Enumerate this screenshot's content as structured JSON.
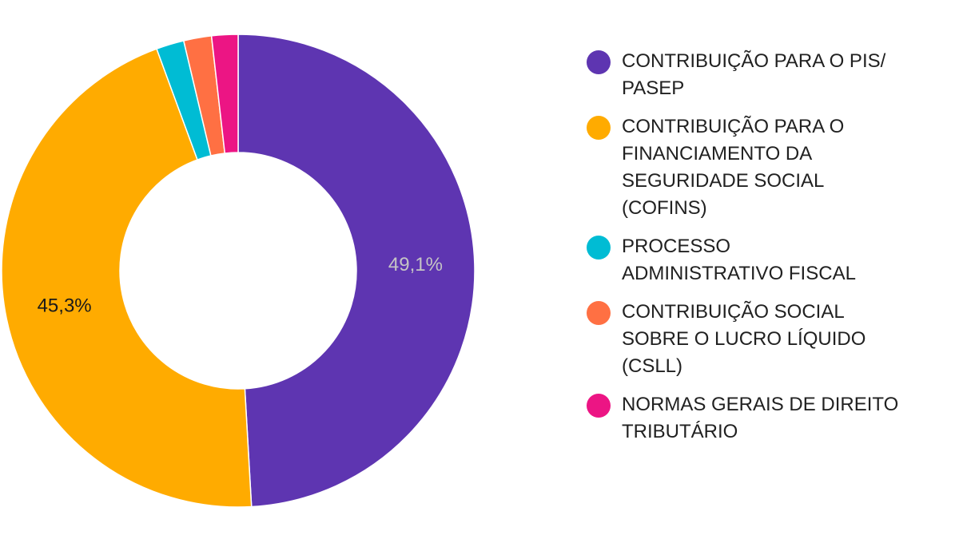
{
  "chart_data": {
    "type": "pie",
    "donut": true,
    "legend_position": "right",
    "series": [
      {
        "name": "CONTRIBUIÇÃO PARA O PIS/\nPASEP",
        "value": 49.1,
        "label": "49,1%",
        "color": "#5e35b1",
        "label_color": "#c5c5c5"
      },
      {
        "name": "CONTRIBUIÇÃO PARA O\nFINANCIAMENTO DA\nSEGURIDADE SOCIAL\n(COFINS)",
        "value": 45.3,
        "label": "45,3%",
        "color": "#ffab00",
        "label_color": "#1a1a1a"
      },
      {
        "name": "PROCESSO\nADMINISTRATIVO FISCAL",
        "value": 1.9,
        "label": "",
        "color": "#00bcd4",
        "label_color": "#1a1a1a"
      },
      {
        "name": "CONTRIBUIÇÃO SOCIAL\nSOBRE O LUCRO LÍQUIDO\n(CSLL)",
        "value": 1.9,
        "label": "",
        "color": "#ff7043",
        "label_color": "#1a1a1a"
      },
      {
        "name": "NORMAS GERAIS DE DIREITO\nTRIBUTÁRIO",
        "value": 1.8,
        "label": "",
        "color": "#ec1584",
        "label_color": "#1a1a1a"
      }
    ]
  }
}
